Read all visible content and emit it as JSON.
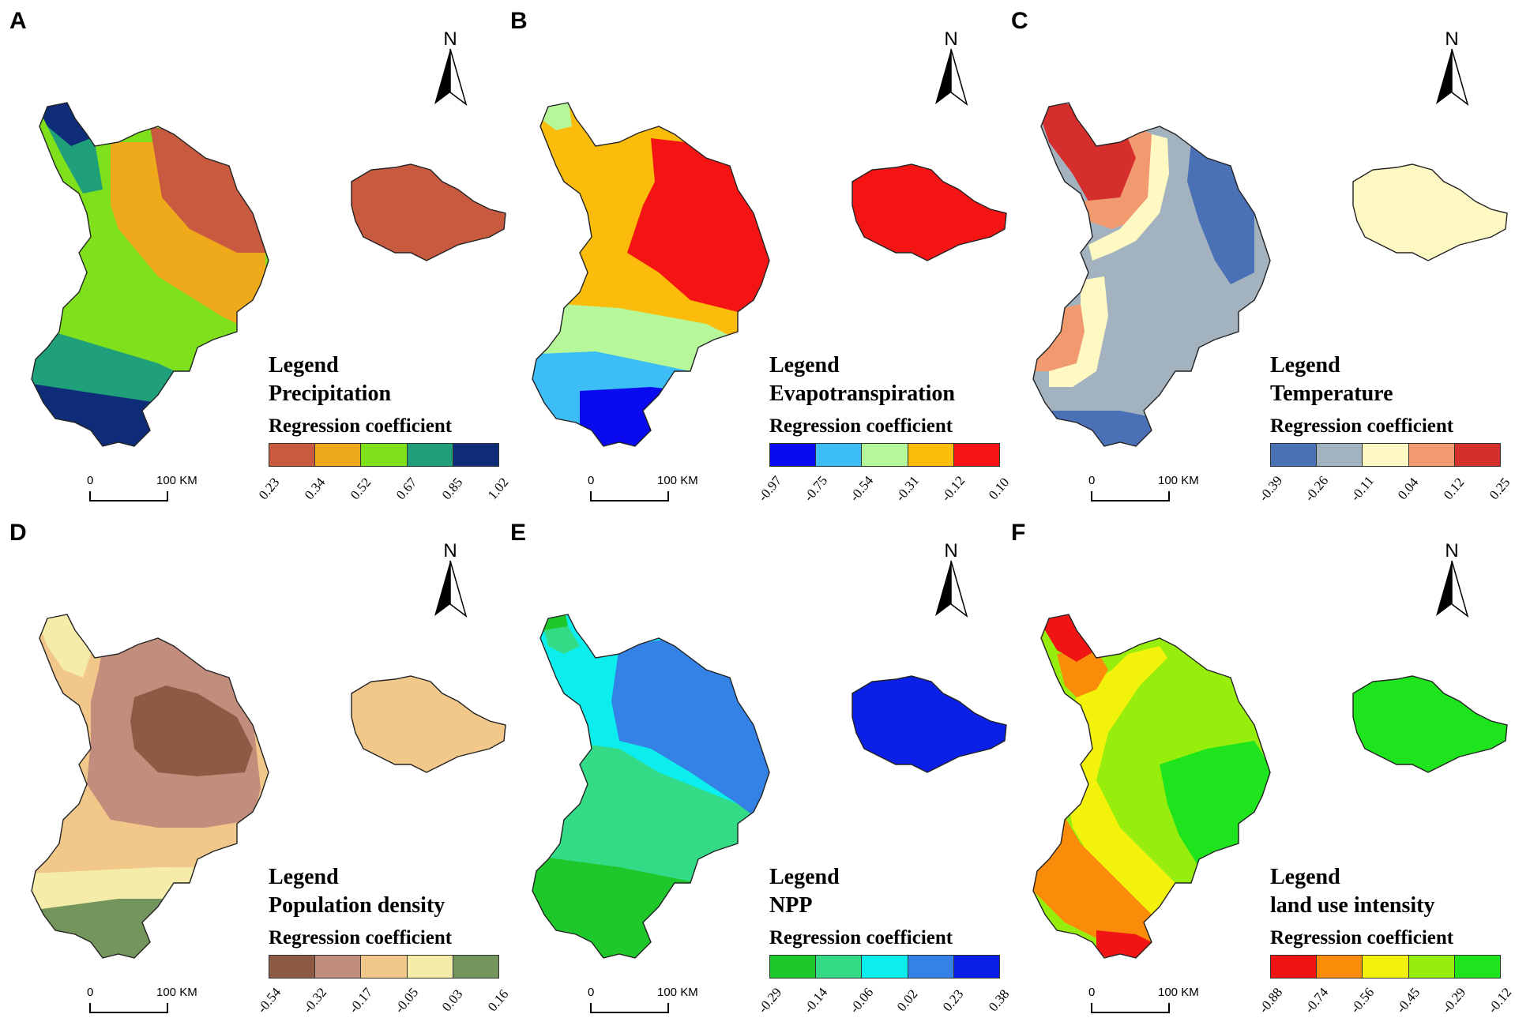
{
  "panels": [
    {
      "letter": "A",
      "legend_title": "Legend",
      "variable": "Precipitation",
      "subtitle": "Regression coefficient",
      "colors": [
        "#c75a3f",
        "#efaa1c",
        "#7fe01c",
        "#1fa07a",
        "#0e2c78"
      ],
      "ticks": [
        "0.23",
        "0.34",
        "0.52",
        "0.67",
        "0.85",
        "1.02"
      ],
      "north": "N",
      "scale_zero": "0",
      "scale_km": "100 KM"
    },
    {
      "letter": "B",
      "legend_title": "Legend",
      "variable": "Evapotranspiration",
      "subtitle": "Regression coefficient",
      "colors": [
        "#0a0af0",
        "#3cbdf5",
        "#b6f79a",
        "#fbbc0b",
        "#f51414"
      ],
      "ticks": [
        "-0.97",
        "-0.75",
        "-0.54",
        "-0.31",
        "-0.12",
        "0.10"
      ],
      "north": "N",
      "scale_zero": "0",
      "scale_km": "100 KM"
    },
    {
      "letter": "C",
      "legend_title": "Legend",
      "variable": "Temperature",
      "subtitle": "Regression coefficient",
      "colors": [
        "#4a70b5",
        "#a3b2bf",
        "#fef8c2",
        "#f19a70",
        "#d52f2d"
      ],
      "ticks": [
        "-0.39",
        "-0.26",
        "-0.11",
        "0.04",
        "0.12",
        "0.25"
      ],
      "north": "N",
      "scale_zero": "0",
      "scale_km": "100 KM"
    },
    {
      "letter": "D",
      "legend_title": "Legend",
      "variable": "Population density",
      "subtitle": "Regression coefficient",
      "colors": [
        "#8e5a44",
        "#c28d7d",
        "#f1c88a",
        "#f5ecaa",
        "#74955b"
      ],
      "ticks": [
        "-0.54",
        "-0.32",
        "-0.17",
        "-0.05",
        "0.03",
        "0.16"
      ],
      "north": "N",
      "scale_zero": "0",
      "scale_km": "100 KM"
    },
    {
      "letter": "E",
      "legend_title": "Legend",
      "variable": "NPP",
      "subtitle": "Regression coefficient",
      "colors": [
        "#1ec82a",
        "#34db86",
        "#0ceeee",
        "#3582e6",
        "#0a20e6"
      ],
      "ticks": [
        "-0.29",
        "-0.14",
        "-0.06",
        "0.02",
        "0.23",
        "0.38"
      ],
      "north": "N",
      "scale_zero": "0",
      "scale_km": "100 KM"
    },
    {
      "letter": "F",
      "legend_title": "Legend",
      "variable": "land use intensity",
      "subtitle": "Regression coefficient",
      "colors": [
        "#f01414",
        "#fb8c0a",
        "#f3f20d",
        "#97ee0d",
        "#1de41d"
      ],
      "ticks": [
        "-0.88",
        "-0.74",
        "-0.56",
        "-0.45",
        "-0.29",
        "-0.12"
      ],
      "north": "N",
      "scale_zero": "0",
      "scale_km": "100 KM"
    }
  ]
}
